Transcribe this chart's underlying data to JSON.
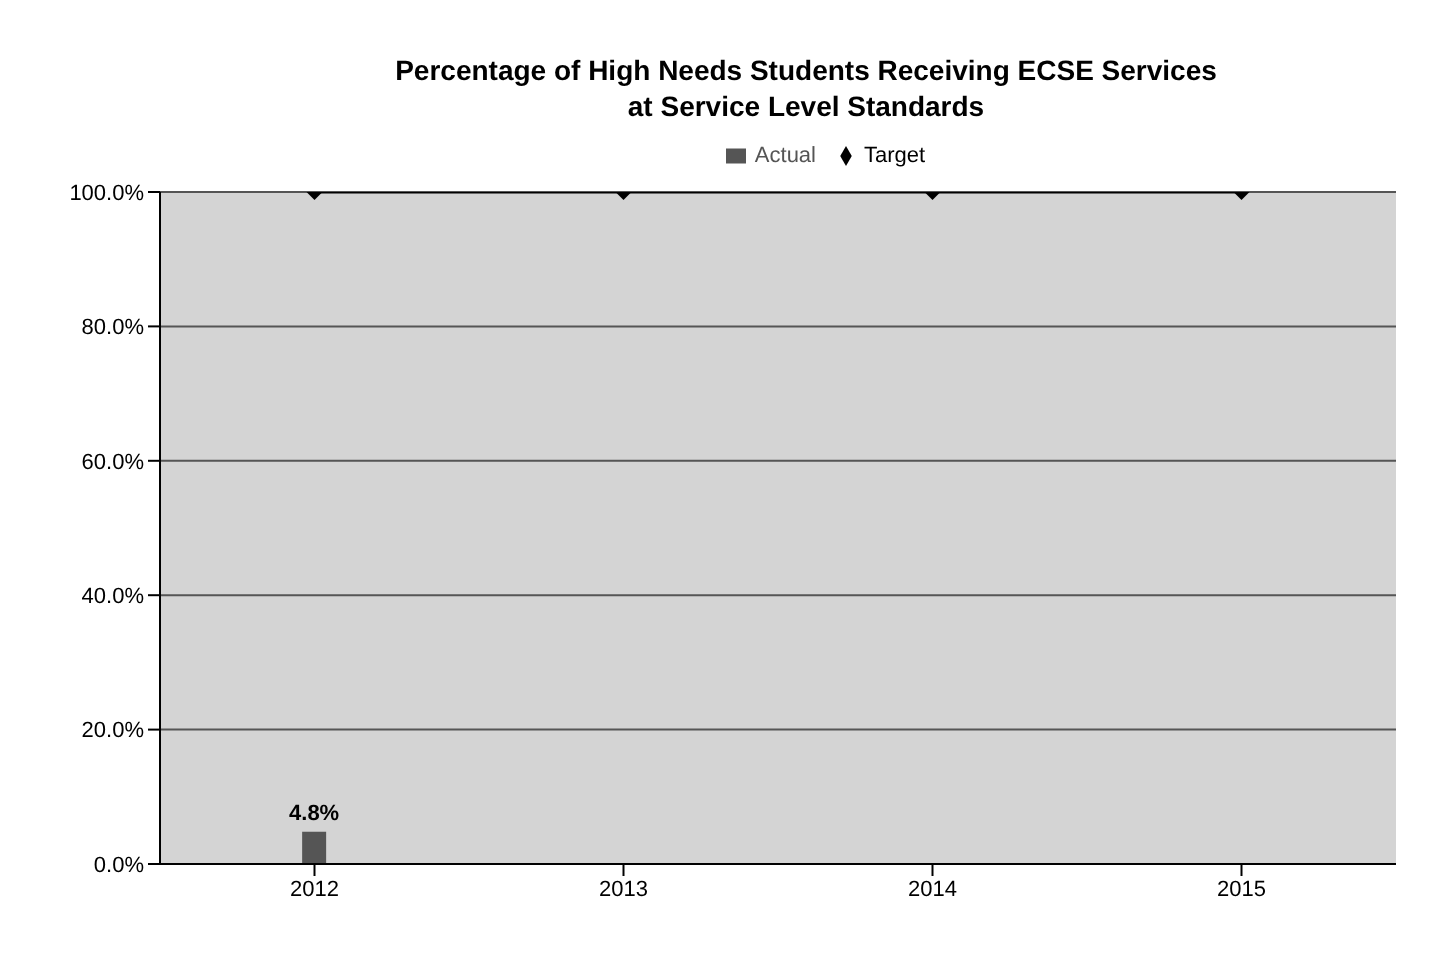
{
  "chart_data": {
    "type": "bar",
    "title": "Percentage of High Needs Students Receiving ECSE Services\nat Service Level Standards",
    "categories": [
      "2012",
      "2013",
      "2014",
      "2015"
    ],
    "series": [
      {
        "name": "Actual",
        "color": "#555555",
        "values": [
          4.8,
          null,
          null,
          null
        ],
        "value_labels": [
          "4.8%",
          null,
          null,
          null
        ]
      },
      {
        "name": "Target",
        "type": "line",
        "color": "#000000",
        "values": [
          100,
          100,
          100,
          100
        ],
        "marker": "diamond"
      }
    ],
    "ylim": [
      0,
      100
    ],
    "yticks": [
      {
        "value": 0,
        "label": "0.0%"
      },
      {
        "value": 20,
        "label": "20.0%"
      },
      {
        "value": 40,
        "label": "40.0%"
      },
      {
        "value": 60,
        "label": "60.0%"
      },
      {
        "value": 80,
        "label": "80.0%"
      },
      {
        "value": 100,
        "label": "100.0%"
      }
    ],
    "grid": "y",
    "legend": "top"
  }
}
